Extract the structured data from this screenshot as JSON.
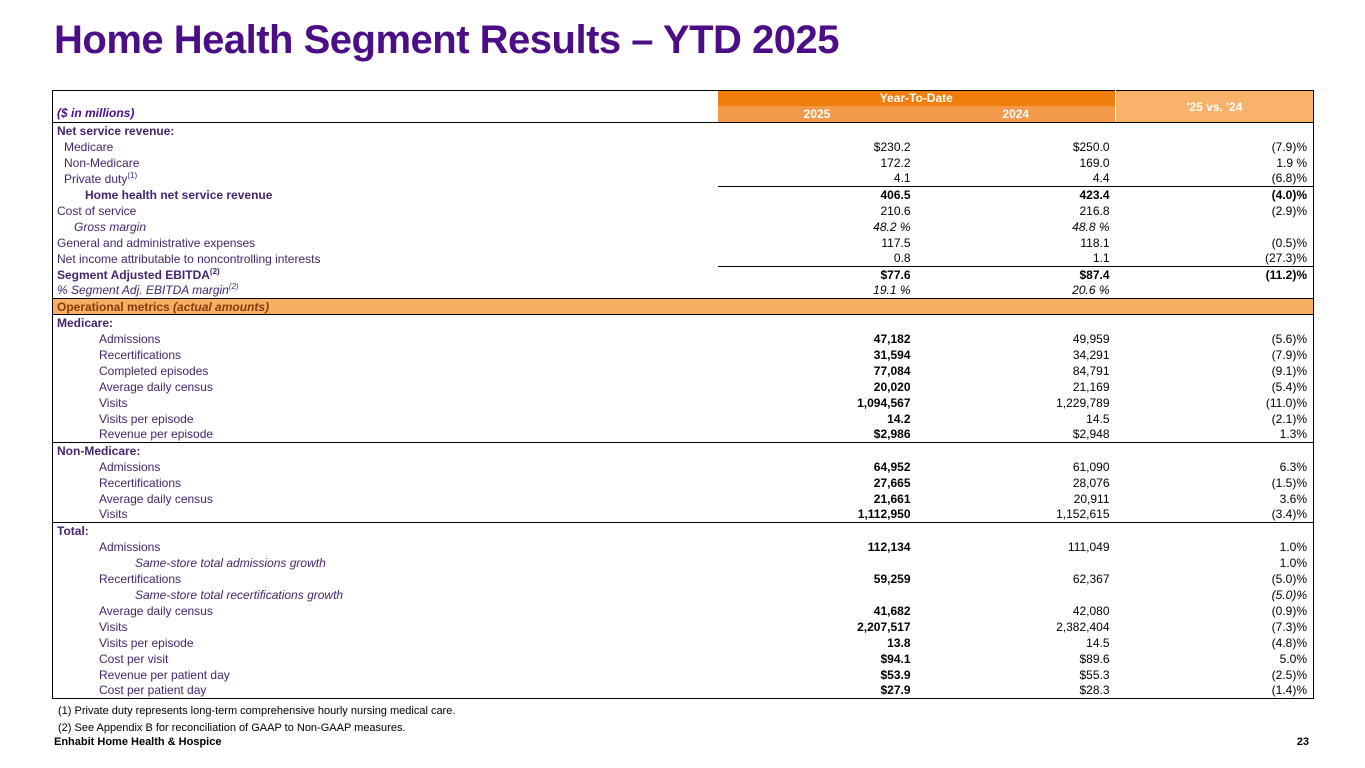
{
  "slide": {
    "title": "Home Health Segment Results – YTD 2025",
    "footer_left": "Enhabit Home Health & Hospice",
    "page_number": "23",
    "footnotes": [
      "(1) Private duty represents long-term comprehensive hourly nursing medical care.",
      "(2) See Appendix B for reconciliation of GAAP to Non-GAAP measures."
    ]
  },
  "colors": {
    "title_purple": "#4b0e87",
    "label_purple": "#45266e",
    "header_orange_dark": "#ef7e0c",
    "header_orange_mid": "#f2994a",
    "header_orange_light": "#f8b269",
    "band_orange": "#f8ae63",
    "band_text": "#843c0c"
  },
  "table": {
    "corner_label": "($ in millions)",
    "group_header": "Year-To-Date",
    "col_2025": "2025",
    "col_2024": "2024",
    "col_change": "'25 vs. '24",
    "rows": [
      {
        "label": "Net service revenue:",
        "ind": 0,
        "b": true
      },
      {
        "label": "Medicare",
        "ind": 1,
        "v25": "$230.2",
        "v24": "$250.0",
        "chg": "(7.9)%"
      },
      {
        "label": "Non-Medicare",
        "ind": 1,
        "v25": "172.2",
        "v24": "169.0",
        "chg": "1.9 %"
      },
      {
        "label": "Private duty",
        "sup": "(1)",
        "ind": 1,
        "v25": "4.1",
        "v24": "4.4",
        "chg": "(6.8)%"
      },
      {
        "label": "Home health net service revenue",
        "ind": 3,
        "b": true,
        "v25": "406.5",
        "v24": "423.4",
        "chg": "(4.0)%",
        "b25": true,
        "b24": true,
        "bChg": true,
        "topline": "values"
      },
      {
        "label": "Cost of service",
        "ind": 0,
        "v25": "210.6",
        "v24": "216.8",
        "chg": "(2.9)%"
      },
      {
        "label": "Gross margin",
        "ind": 2,
        "i": true,
        "v25": "48.2 %",
        "v24": "48.8 %",
        "chg": "",
        "iV": true
      },
      {
        "label": "General and administrative expenses",
        "ind": 0,
        "v25": "117.5",
        "v24": "118.1",
        "chg": "(0.5)%"
      },
      {
        "label": "Net income attributable to noncontrolling interests",
        "ind": 0,
        "v25": "0.8",
        "v24": "1.1",
        "chg": "(27.3)%"
      },
      {
        "label": "Segment Adjusted EBITDA",
        "sup": "(2)",
        "ind": 0,
        "b": true,
        "v25": "$77.6",
        "v24": "$87.4",
        "chg": "(11.2)%",
        "b25": true,
        "b24": true,
        "bChg": true,
        "topline": "values"
      },
      {
        "label": "% Segment Adj. EBITDA margin",
        "sup": "(2)",
        "ind": 0,
        "i": true,
        "v25": "19.1 %",
        "v24": "20.6 %",
        "chg": "",
        "iV": true
      },
      {
        "band": true,
        "label": "Operational metrics ",
        "label2": "(actual amounts)"
      },
      {
        "label": "Medicare:",
        "ind": 0,
        "b": true
      },
      {
        "label": "Admissions",
        "ind": 4,
        "v25": "47,182",
        "v24": "49,959",
        "chg": "(5.6)%",
        "b25": true
      },
      {
        "label": "Recertifications",
        "ind": 4,
        "v25": "31,594",
        "v24": "34,291",
        "chg": "(7.9)%",
        "b25": true
      },
      {
        "label": "Completed episodes",
        "ind": 4,
        "v25": "77,084",
        "v24": "84,791",
        "chg": "(9.1)%",
        "b25": true
      },
      {
        "label": "Average daily census",
        "ind": 4,
        "v25": "20,020",
        "v24": "21,169",
        "chg": "(5.4)%",
        "b25": true
      },
      {
        "label": "Visits",
        "ind": 4,
        "v25": "1,094,567",
        "v24": "1,229,789",
        "chg": "(11.0)%",
        "b25": true
      },
      {
        "label": "Visits per episode",
        "ind": 4,
        "v25": "14.2",
        "v24": "14.5",
        "chg": "(2.1)%",
        "b25": true
      },
      {
        "label": "Revenue per episode",
        "ind": 4,
        "v25": "$2,986",
        "v24": "$2,948",
        "chg": "1.3%",
        "b25": true
      },
      {
        "label": "Non-Medicare:",
        "ind": 0,
        "b": true,
        "topline": "full"
      },
      {
        "label": "Admissions",
        "ind": 4,
        "v25": "64,952",
        "v24": "61,090",
        "chg": "6.3%",
        "b25": true
      },
      {
        "label": "Recertifications",
        "ind": 4,
        "v25": "27,665",
        "v24": "28,076",
        "chg": "(1.5)%",
        "b25": true
      },
      {
        "label": "Average daily census",
        "ind": 4,
        "v25": "21,661",
        "v24": "20,911",
        "chg": "3.6%",
        "b25": true
      },
      {
        "label": "Visits",
        "ind": 4,
        "v25": "1,112,950",
        "v24": "1,152,615",
        "chg": "(3.4)%",
        "b25": true
      },
      {
        "label": "Total:",
        "ind": 0,
        "b": true,
        "topline": "full"
      },
      {
        "label": "Admissions",
        "ind": 4,
        "v25": "112,134",
        "v24": "111,049",
        "chg": "1.0%",
        "b25": true
      },
      {
        "label": "Same-store total admissions growth",
        "ind": 5,
        "i": true,
        "chg": "1.0%"
      },
      {
        "label": "Recertifications",
        "ind": 4,
        "v25": "59,259",
        "v24": "62,367",
        "chg": "(5.0)%",
        "b25": true
      },
      {
        "label": "Same-store total recertifications growth",
        "ind": 5,
        "i": true,
        "chg": "(5.0)%",
        "iChg": true
      },
      {
        "label": "Average daily census",
        "ind": 4,
        "v25": "41,682",
        "v24": "42,080",
        "chg": "(0.9)%",
        "b25": true
      },
      {
        "label": "Visits",
        "ind": 4,
        "v25": "2,207,517",
        "v24": "2,382,404",
        "chg": "(7.3)%",
        "b25": true
      },
      {
        "label": "Visits per episode",
        "ind": 4,
        "v25": "13.8",
        "v24": "14.5",
        "chg": "(4.8)%",
        "b25": true
      },
      {
        "label": "Cost per visit",
        "ind": 4,
        "v25": "$94.1",
        "v24": "$89.6",
        "chg": "5.0%",
        "b25": true
      },
      {
        "label": "Revenue per patient day",
        "ind": 4,
        "v25": "$53.9",
        "v24": "$55.3",
        "chg": "(2.5)%",
        "b25": true
      },
      {
        "label": "Cost per patient day",
        "ind": 4,
        "v25": "$27.9",
        "v24": "$28.3",
        "chg": "(1.4)%",
        "b25": true
      }
    ]
  }
}
